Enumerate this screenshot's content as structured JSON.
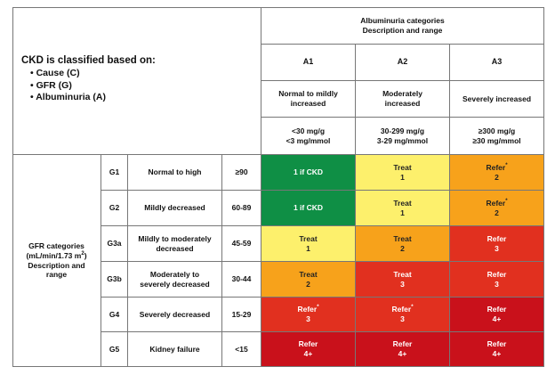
{
  "classification": {
    "title": "CKD is classified based on:",
    "criteria": [
      "Cause (C)",
      "GFR (G)",
      "Albuminuria (A)"
    ]
  },
  "albuminuria": {
    "header_line1": "Albuminuria categories",
    "header_line2": "Description and range",
    "categories": [
      {
        "code": "A1",
        "description": "Normal to mildly increased",
        "range_line1": "<30 mg/g",
        "range_line2": "<3 mg/mmol"
      },
      {
        "code": "A2",
        "description": "Moderately increased",
        "range_line1": "30-299 mg/g",
        "range_line2": "3-29 mg/mmol"
      },
      {
        "code": "A3",
        "description": "Severely increased",
        "range_line1": "≥300 mg/g",
        "range_line2": "≥30 mg/mmol"
      }
    ]
  },
  "gfr": {
    "header_line1": "GFR categories",
    "header_unit_prefix": "(mL/min/1.73 m",
    "header_unit_sup": "2",
    "header_unit_suffix": ")",
    "header_line3": "Description and",
    "header_line4": "range",
    "rows": [
      {
        "code": "G1",
        "description": "Normal to high",
        "range": "≥90"
      },
      {
        "code": "G2",
        "description": "Mildly decreased",
        "range": "60-89"
      },
      {
        "code": "G3a",
        "description": "Mildly to moderately decreased",
        "range": "45-59"
      },
      {
        "code": "G3b",
        "description": "Moderately to severely decreased",
        "range": "30-44"
      },
      {
        "code": "G4",
        "description": "Severely decreased",
        "range": "15-29"
      },
      {
        "code": "G5",
        "description": "Kidney failure",
        "range": "<15"
      }
    ]
  },
  "colors": {
    "green": "#0f8f45",
    "yellow": "#fdf06c",
    "orange": "#f7a21b",
    "red": "#e1301f",
    "deep_red": "#c9111b"
  },
  "risk_matrix": [
    [
      {
        "line1": "1 if CKD",
        "line2": "",
        "star": "",
        "level": "green"
      },
      {
        "line1": "Treat",
        "line2": "1",
        "star": "",
        "level": "yellow"
      },
      {
        "line1": "Refer",
        "line2": "2",
        "star": "*",
        "level": "orange"
      }
    ],
    [
      {
        "line1": "1 if CKD",
        "line2": "",
        "star": "",
        "level": "green"
      },
      {
        "line1": "Treat",
        "line2": "1",
        "star": "",
        "level": "yellow"
      },
      {
        "line1": "Refer",
        "line2": "2",
        "star": "*",
        "level": "orange"
      }
    ],
    [
      {
        "line1": "Treat",
        "line2": "1",
        "star": "",
        "level": "yellow"
      },
      {
        "line1": "Treat",
        "line2": "2",
        "star": "",
        "level": "orange"
      },
      {
        "line1": "Refer",
        "line2": "3",
        "star": "",
        "level": "red"
      }
    ],
    [
      {
        "line1": "Treat",
        "line2": "2",
        "star": "",
        "level": "orange"
      },
      {
        "line1": "Treat",
        "line2": "3",
        "star": "",
        "level": "red"
      },
      {
        "line1": "Refer",
        "line2": "3",
        "star": "",
        "level": "red"
      }
    ],
    [
      {
        "line1": "Refer",
        "line2": "3",
        "star": "*",
        "level": "red"
      },
      {
        "line1": "Refer",
        "line2": "3",
        "star": "*",
        "level": "red"
      },
      {
        "line1": "Refer",
        "line2": "4+",
        "star": "",
        "level": "deep_red"
      }
    ],
    [
      {
        "line1": "Refer",
        "line2": "4+",
        "star": "",
        "level": "deep_red"
      },
      {
        "line1": "Refer",
        "line2": "4+",
        "star": "",
        "level": "deep_red"
      },
      {
        "line1": "Refer",
        "line2": "4+",
        "star": "",
        "level": "deep_red"
      }
    ]
  ]
}
